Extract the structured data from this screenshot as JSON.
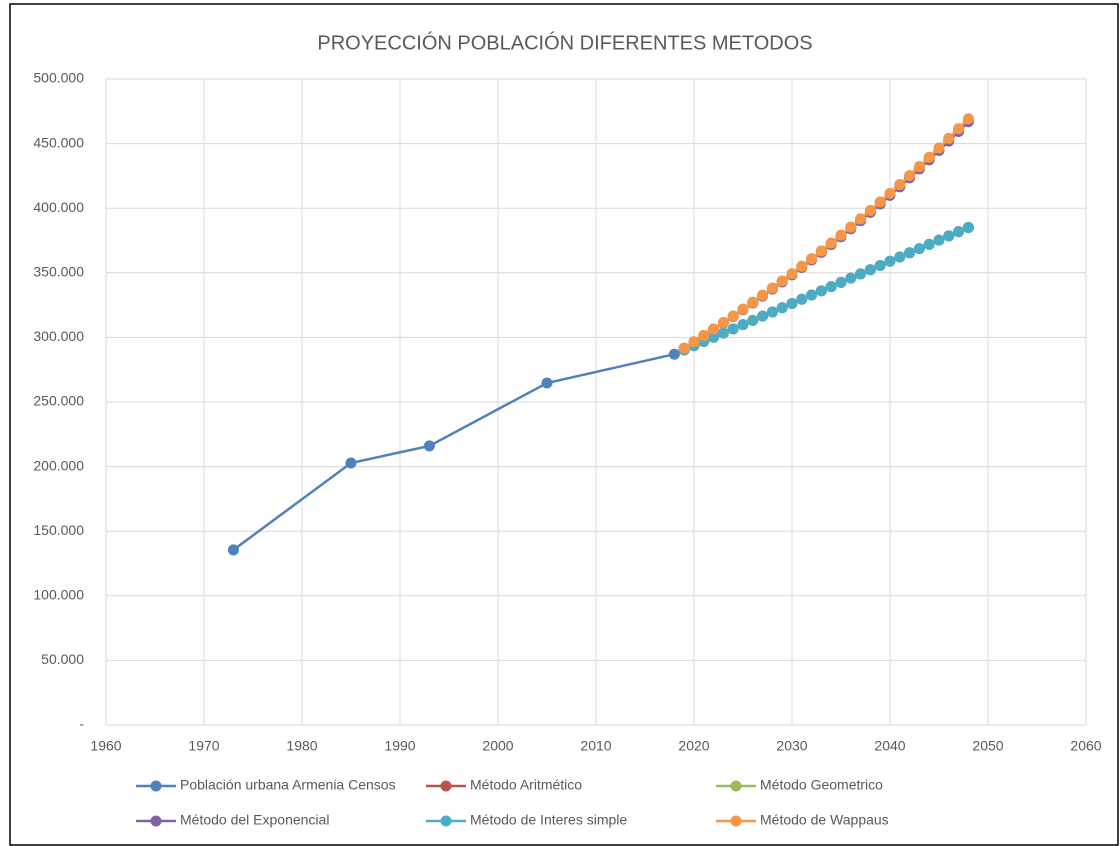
{
  "chart_data": {
    "type": "line",
    "title": "PROYECCIÓN POBLACIÓN DIFERENTES METODOS",
    "xlim": [
      1960,
      2060
    ],
    "xticks": [
      1960,
      1970,
      1980,
      1990,
      2000,
      2010,
      2020,
      2030,
      2040,
      2050,
      2060
    ],
    "ylim": [
      0,
      500000
    ],
    "yticks": [
      {
        "value": 0,
        "label": "-"
      },
      {
        "value": 50000,
        "label": "50.000"
      },
      {
        "value": 100000,
        "label": "100.000"
      },
      {
        "value": 150000,
        "label": "150.000"
      },
      {
        "value": 200000,
        "label": "200.000"
      },
      {
        "value": 250000,
        "label": "250.000"
      },
      {
        "value": 300000,
        "label": "300.000"
      },
      {
        "value": 350000,
        "label": "350.000"
      },
      {
        "value": 400000,
        "label": "400.000"
      },
      {
        "value": 450000,
        "label": "450.000"
      },
      {
        "value": 500000,
        "label": "500.000"
      }
    ],
    "grid": true,
    "legend": "bottom",
    "series": [
      {
        "name": "Población urbana Armenia Censos",
        "color": "#4f81bd",
        "x": [
          1973,
          1985,
          1993,
          2005,
          2018
        ],
        "values": [
          135500,
          202800,
          216000,
          264700,
          287000
        ]
      },
      {
        "name": "Método Aritmético",
        "color": "#c0504d",
        "x": [
          2019,
          2020,
          2021,
          2022,
          2023,
          2024,
          2025,
          2026,
          2027,
          2028,
          2029,
          2030,
          2031,
          2032,
          2033,
          2034,
          2035,
          2036,
          2037,
          2038,
          2039,
          2040,
          2041,
          2042,
          2043,
          2044,
          2045,
          2046,
          2047,
          2048
        ],
        "values": [
          290270,
          293540,
          296810,
          300080,
          303350,
          306620,
          309890,
          313160,
          316430,
          319700,
          322970,
          326240,
          329510,
          332780,
          336050,
          339320,
          342590,
          345860,
          349130,
          352400,
          355670,
          358940,
          362210,
          365480,
          368750,
          372020,
          375290,
          378560,
          381830,
          385100
        ]
      },
      {
        "name": "Método Geometrico",
        "color": "#9bbb59",
        "x": [
          2019,
          2020,
          2021,
          2022,
          2023,
          2024,
          2025,
          2026,
          2027,
          2028,
          2029,
          2030,
          2031,
          2032,
          2033,
          2034,
          2035,
          2036,
          2037,
          2038,
          2039,
          2040,
          2041,
          2042,
          2043,
          2044,
          2045,
          2046,
          2047,
          2048
        ],
        "values": [
          291700,
          296600,
          301500,
          306500,
          311500,
          316600,
          321900,
          327200,
          332600,
          338100,
          343700,
          349300,
          355100,
          360900,
          366900,
          373000,
          379100,
          385400,
          391700,
          398200,
          404800,
          411500,
          418200,
          425200,
          432200,
          439300,
          446600,
          454000,
          461500,
          469100
        ]
      },
      {
        "name": "Método del Exponencial",
        "color": "#8064a2",
        "x": [
          2019,
          2020,
          2021,
          2022,
          2023,
          2024,
          2025,
          2026,
          2027,
          2028,
          2029,
          2030,
          2031,
          2032,
          2033,
          2034,
          2035,
          2036,
          2037,
          2038,
          2039,
          2040,
          2041,
          2042,
          2043,
          2044,
          2045,
          2046,
          2047,
          2048
        ],
        "values": [
          291630,
          296450,
          301280,
          306210,
          311140,
          316160,
          321390,
          326620,
          331940,
          337370,
          342900,
          348420,
          354150,
          359880,
          365810,
          371830,
          377860,
          384090,
          390310,
          396740,
          403270,
          409890,
          416520,
          423450,
          430380,
          437400,
          444630,
          451960,
          459380,
          466910
        ]
      },
      {
        "name": "Método de Interes simple",
        "color": "#4bacc6",
        "x": [
          2019,
          2020,
          2021,
          2022,
          2023,
          2024,
          2025,
          2026,
          2027,
          2028,
          2029,
          2030,
          2031,
          2032,
          2033,
          2034,
          2035,
          2036,
          2037,
          2038,
          2039,
          2040,
          2041,
          2042,
          2043,
          2044,
          2045,
          2046,
          2047,
          2048
        ],
        "values": [
          290270,
          293540,
          296810,
          300080,
          303350,
          306620,
          309890,
          313160,
          316430,
          319700,
          322970,
          326240,
          329510,
          332780,
          336050,
          339320,
          342590,
          345860,
          349130,
          352400,
          355670,
          358940,
          362210,
          365480,
          368750,
          372020,
          375290,
          378560,
          381830,
          385100
        ]
      },
      {
        "name": "Método de Wappaus",
        "color": "#f79646",
        "x": [
          2019,
          2020,
          2021,
          2022,
          2023,
          2024,
          2025,
          2026,
          2027,
          2028,
          2029,
          2030,
          2031,
          2032,
          2033,
          2034,
          2035,
          2036,
          2037,
          2038,
          2039,
          2040,
          2041,
          2042,
          2043,
          2044,
          2045,
          2046,
          2047,
          2048
        ],
        "values": [
          291700,
          296600,
          301500,
          306500,
          311500,
          316600,
          321900,
          327200,
          332600,
          338100,
          343700,
          349300,
          355100,
          360900,
          366900,
          373000,
          379100,
          385400,
          391700,
          398200,
          404800,
          411500,
          418200,
          425200,
          432200,
          439300,
          446600,
          454000,
          461500,
          469100
        ]
      }
    ]
  }
}
